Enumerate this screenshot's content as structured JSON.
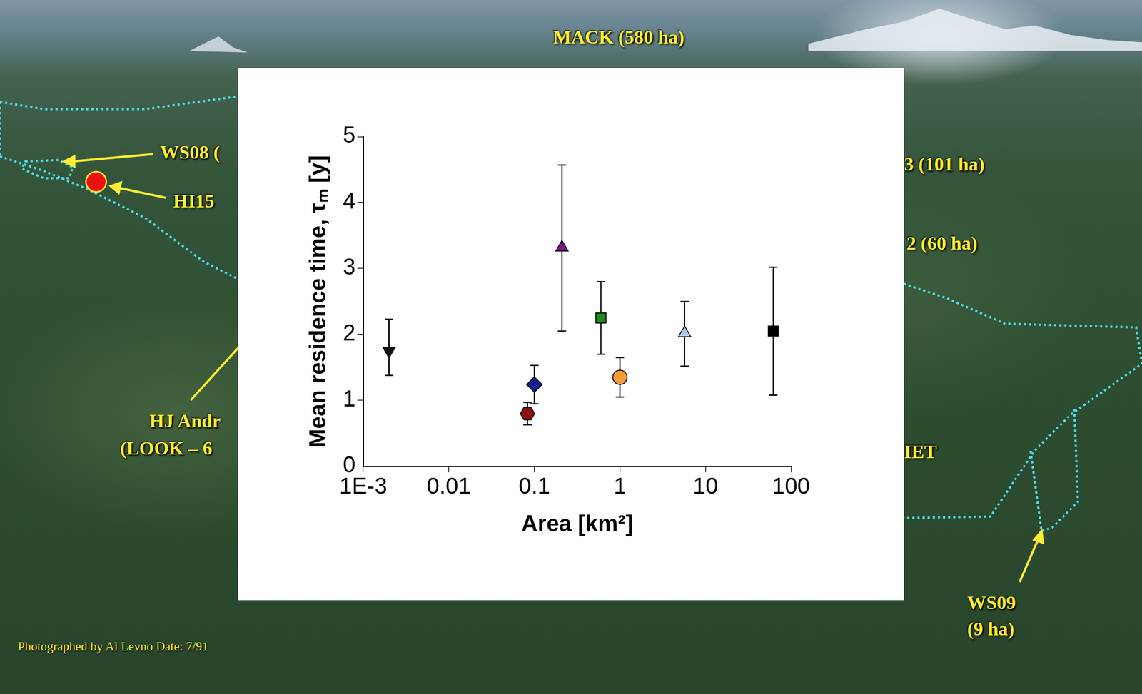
{
  "chart_data": {
    "type": "scatter",
    "x_label": "Area [km²]",
    "y_label": "Mean residence time, τₘ [y]",
    "log": "x",
    "grid": false,
    "xlim": [
      0.001,
      100
    ],
    "ylim": [
      0,
      5
    ],
    "xticks": [
      {
        "value": 0.001,
        "label": "1E-3"
      },
      0.01,
      0.1,
      1,
      10,
      100
    ],
    "yticks": [
      0,
      1,
      2,
      3,
      4,
      5
    ],
    "series": [
      {
        "color": "#111111",
        "marker": "triangle-down",
        "x": [
          0.002
        ],
        "values": [
          1.75
        ],
        "lower": [
          1.38
        ],
        "upper": [
          2.23
        ]
      },
      {
        "color": "#8b1010",
        "marker": "hexagon",
        "x": [
          0.083
        ],
        "values": [
          0.8
        ],
        "lower": [
          0.63
        ],
        "upper": [
          0.97
        ]
      },
      {
        "color": "#10208c",
        "marker": "diamond",
        "x": [
          0.1
        ],
        "values": [
          1.24
        ],
        "lower": [
          0.95
        ],
        "upper": [
          1.53
        ]
      },
      {
        "color": "#7a1a80",
        "marker": "triangle",
        "x": [
          0.21
        ],
        "values": [
          3.32
        ],
        "lower": [
          2.05
        ],
        "upper": [
          4.57
        ]
      },
      {
        "color": "#1f8a1f",
        "marker": "square",
        "x": [
          0.6
        ],
        "values": [
          2.25
        ],
        "lower": [
          1.7
        ],
        "upper": [
          2.8
        ]
      },
      {
        "color": "#f0a030",
        "marker": "circle",
        "x": [
          1.0
        ],
        "values": [
          1.35
        ],
        "lower": [
          1.05
        ],
        "upper": [
          1.65
        ]
      },
      {
        "color": "#a8c8f0",
        "marker": "triangle",
        "x": [
          5.7
        ],
        "values": [
          2.02
        ],
        "lower": [
          1.52
        ],
        "upper": [
          2.5
        ]
      },
      {
        "color": "#000000",
        "marker": "square",
        "x": [
          62
        ],
        "values": [
          2.05
        ],
        "lower": [
          1.08
        ],
        "upper": [
          3.02
        ]
      }
    ]
  },
  "photo_labels": [
    "MACK (580 ha)",
    "WS08 (",
    "HI15",
    "3 (101 ha)",
    "2 (60 ha)",
    "HJ Andr",
    "(LOOK – 6",
    "IET",
    "WS09",
    "(9 ha)"
  ],
  "credit": "Photographed by Al Levno Date: 7/91"
}
